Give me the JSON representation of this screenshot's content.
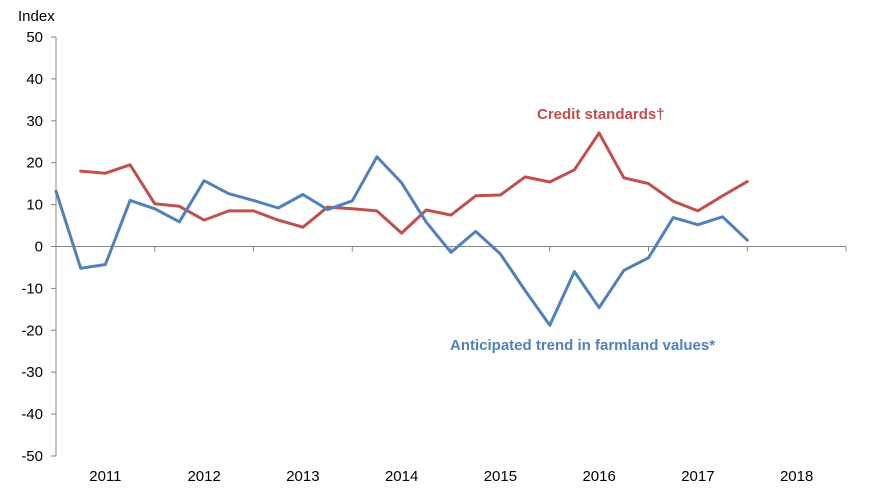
{
  "chart_data": {
    "type": "line",
    "ylabel": "Index",
    "ylim": [
      -50,
      50
    ],
    "y_ticks": [
      50,
      40,
      30,
      20,
      10,
      0,
      -10,
      -20,
      -30,
      -40,
      -50
    ],
    "years": [
      "2011",
      "2012",
      "2013",
      "2014",
      "2015",
      "2016",
      "2017",
      "2018"
    ],
    "quarters_per_year": 4,
    "grid": false,
    "series": [
      {
        "name": "Credit standards†",
        "color": "#c0504d",
        "start_quarter_index": 1,
        "values": [
          18,
          17.5,
          19.5,
          10.2,
          9.6,
          6.3,
          8.5,
          8.5,
          6.3,
          4.6,
          9.4,
          9.0,
          8.5,
          3.2,
          8.7,
          7.5,
          12.1,
          12.3,
          16.6,
          15.4,
          18.3,
          27.1,
          16.4,
          15.0,
          10.8,
          8.5,
          12.1,
          15.5
        ]
      },
      {
        "name": "Anticipated trend in farmland values*",
        "color": "#4f81bd",
        "start_quarter_index": 0,
        "values": [
          13.2,
          -5.2,
          -4.3,
          11.0,
          9.0,
          5.9,
          15.7,
          12.6,
          11.0,
          9.2,
          12.4,
          8.8,
          10.9,
          21.4,
          15.2,
          5.8,
          -1.4,
          3.6,
          -1.8,
          -10.5,
          -18.8,
          -6.0,
          -14.6,
          -5.7,
          -2.7,
          6.9,
          5.2,
          7.1,
          1.5
        ]
      }
    ]
  }
}
